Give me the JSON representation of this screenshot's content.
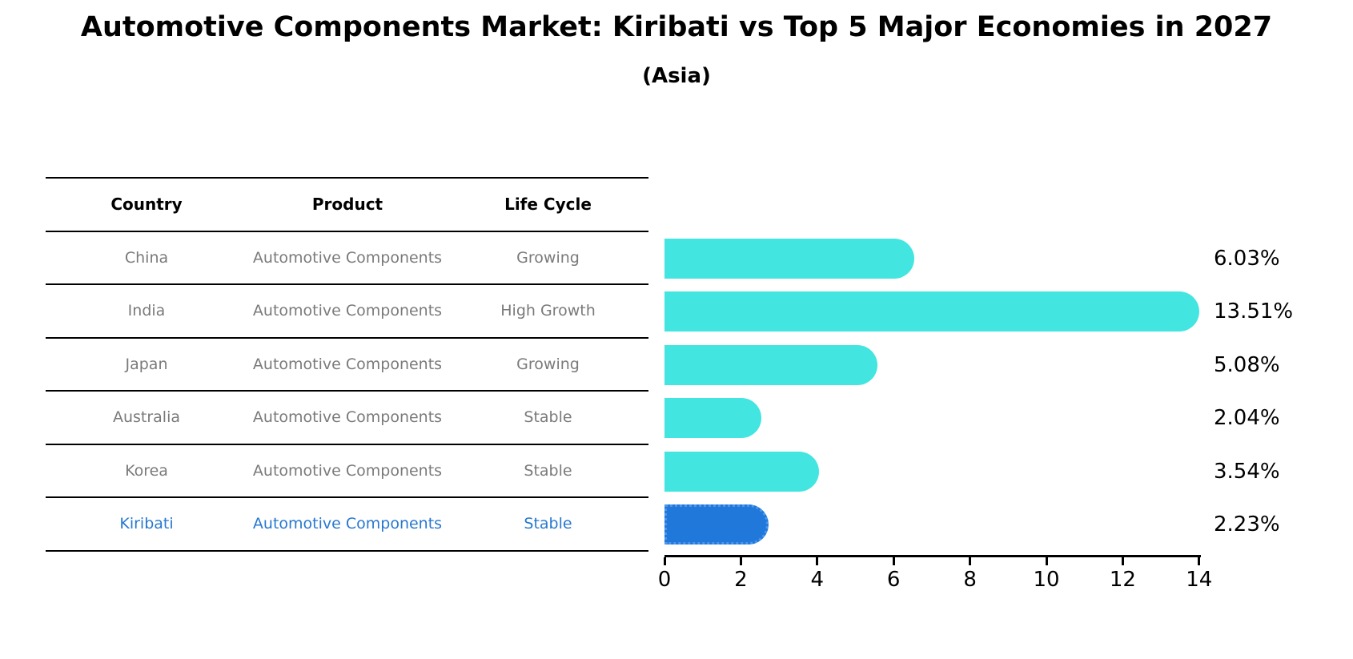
{
  "title": "Automotive Components Market: Kiribati vs Top 5 Major Economies in 2027",
  "subtitle": "(Asia)",
  "table": {
    "headers": [
      "Country",
      "Product",
      "Life Cycle"
    ],
    "rows": [
      {
        "country": "China",
        "product": "Automotive Components",
        "life_cycle": "Growing",
        "highlighted": false
      },
      {
        "country": "India",
        "product": "Automotive Components",
        "life_cycle": "High Growth",
        "highlighted": false
      },
      {
        "country": "Japan",
        "product": "Automotive Components",
        "life_cycle": "Growing",
        "highlighted": false
      },
      {
        "country": "Australia",
        "product": "Automotive Components",
        "life_cycle": "Stable",
        "highlighted": false
      },
      {
        "country": "Korea",
        "product": "Automotive Components",
        "life_cycle": "Stable",
        "highlighted": false
      },
      {
        "country": "Kiribati",
        "product": "Automotive Components",
        "life_cycle": "Stable",
        "highlighted": true
      }
    ]
  },
  "chart_data": {
    "type": "bar",
    "orientation": "horizontal",
    "title": "Automotive Components Market: Kiribati vs Top 5 Major Economies in 2027",
    "subtitle": "(Asia)",
    "categories": [
      "China",
      "India",
      "Japan",
      "Australia",
      "Korea",
      "Kiribati"
    ],
    "values": [
      6.03,
      13.51,
      5.08,
      2.04,
      3.54,
      2.23
    ],
    "value_labels": [
      "6.03%",
      "13.51%",
      "5.08%",
      "2.04%",
      "3.54%",
      "2.23%"
    ],
    "xlabel": "",
    "ylabel": "",
    "xlim": [
      0,
      14
    ],
    "xticks": [
      0,
      2,
      4,
      6,
      8,
      10,
      12,
      14
    ],
    "grid": false,
    "legend": null,
    "highlight_index": 5,
    "highlight_category": "Kiribati"
  },
  "colors": {
    "bar": "#43E5E0",
    "highlight_bar": "#2078DB",
    "highlight_bar_border": "#4D95EC",
    "highlight_text": "#2878D0",
    "table_text": "#7a7a7a",
    "header_text": "#000000",
    "value_label": "#000000",
    "axis": "#000000",
    "background": "#FFFFFF"
  }
}
